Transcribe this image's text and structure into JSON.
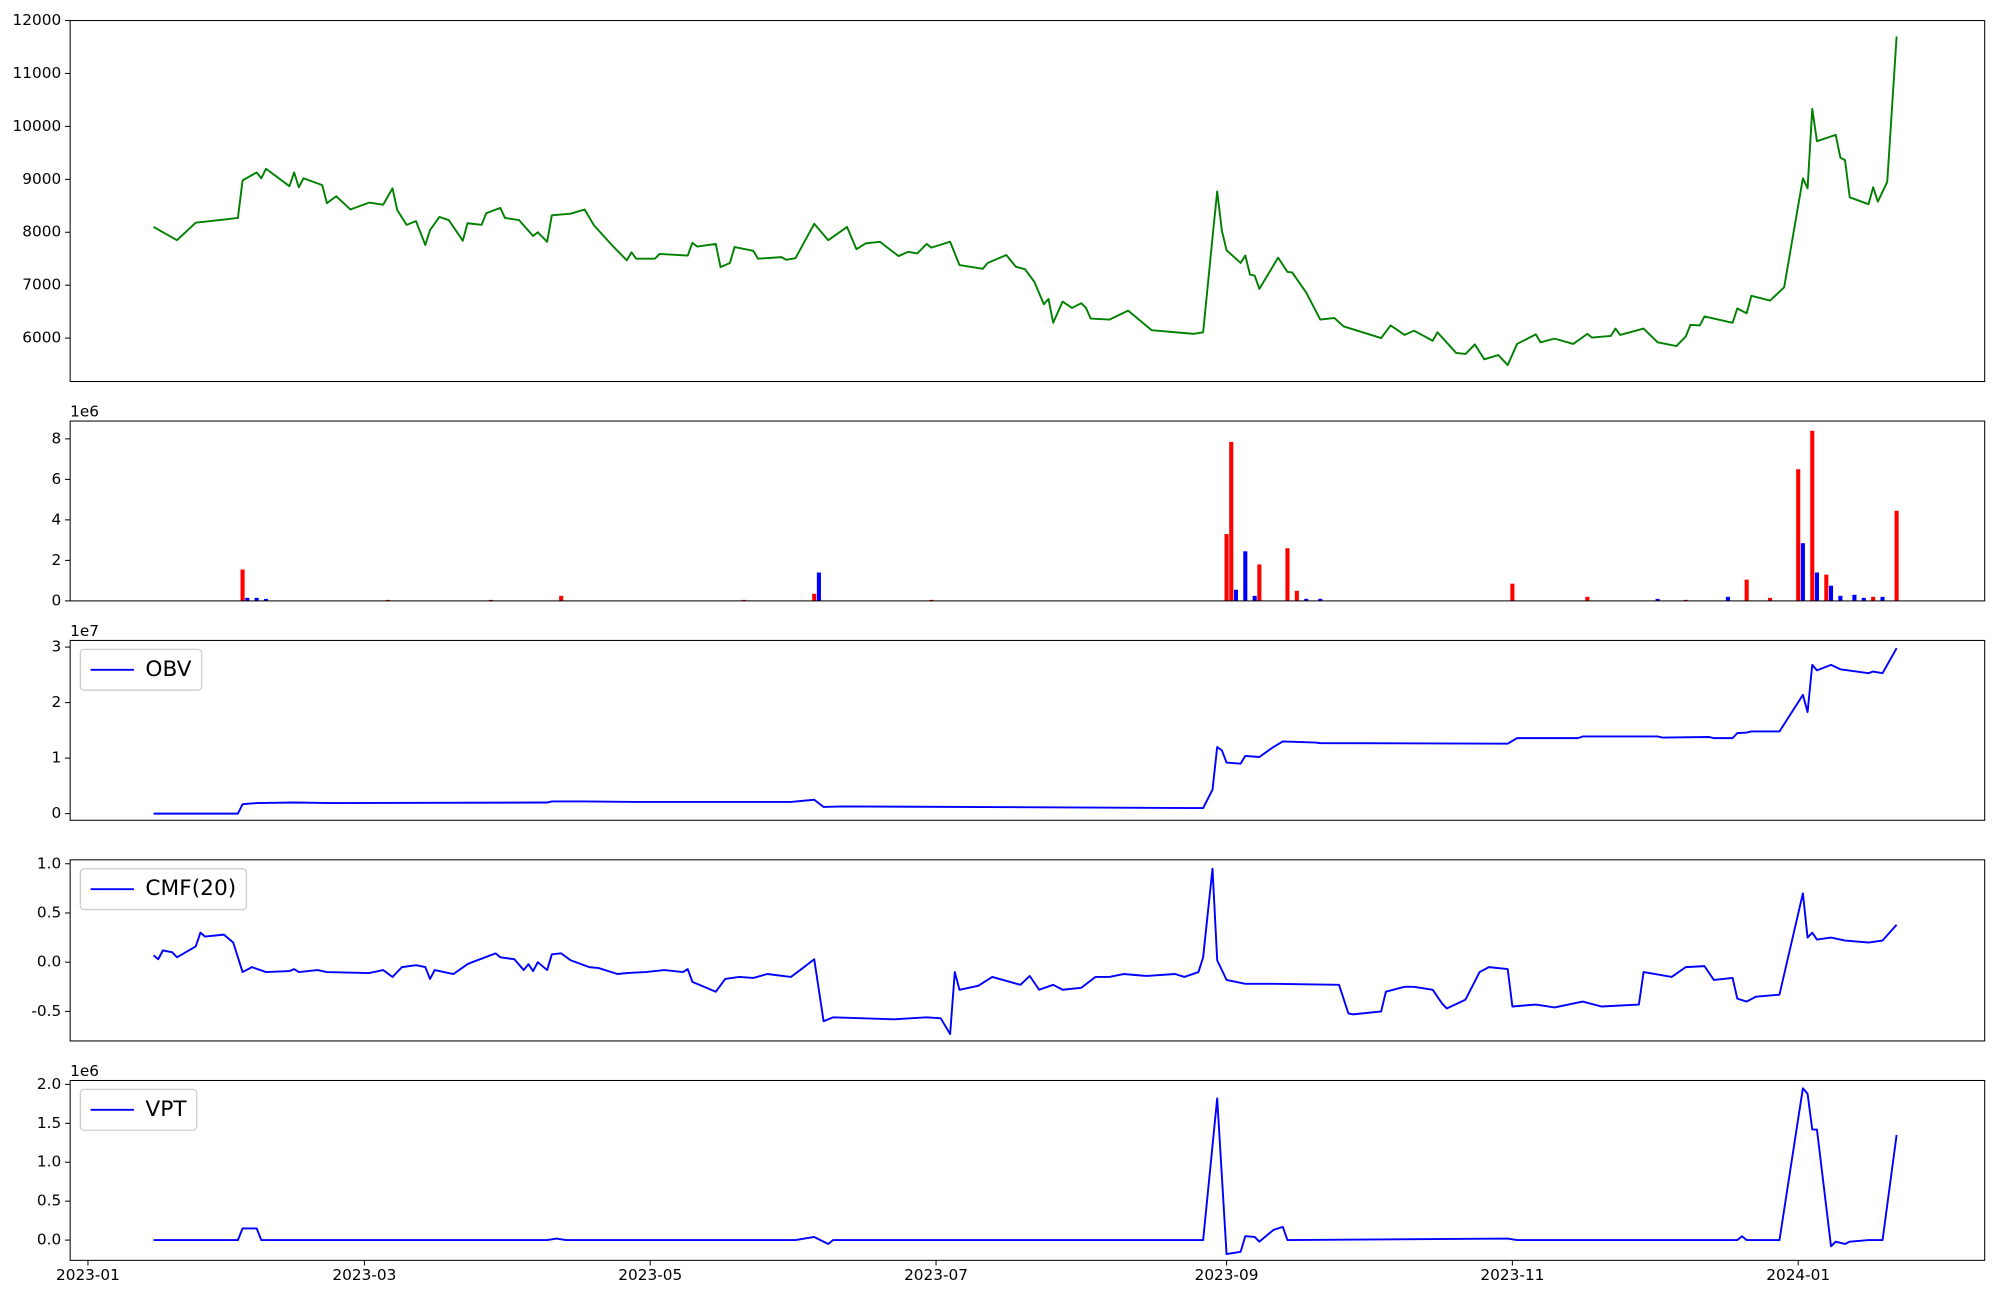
{
  "chart_data": [
    {
      "type": "line",
      "xlim": [
        -3.8,
        404.8
      ],
      "ylim": [
        5180,
        12000
      ],
      "yticks": [
        6000,
        7000,
        8000,
        9000,
        10000,
        11000,
        12000
      ],
      "x": [
        14,
        19,
        23,
        29,
        32,
        33,
        36,
        37,
        38,
        43,
        44,
        45,
        46,
        50,
        51,
        53,
        56,
        60,
        63,
        65,
        66,
        68,
        70,
        72,
        73,
        75,
        77,
        80,
        81,
        84,
        85,
        88,
        89,
        92,
        95,
        96,
        98,
        99,
        103,
        106,
        108,
        112,
        115,
        116,
        117,
        121,
        122,
        128,
        129,
        130,
        134,
        135,
        137,
        138,
        142,
        143,
        148,
        149,
        151,
        155,
        158,
        162,
        164,
        166,
        169,
        173,
        175,
        177,
        179,
        180,
        184,
        186,
        191,
        192,
        196,
        198,
        200,
        202,
        204,
        205,
        206,
        208,
        210,
        212,
        213,
        214,
        218,
        222,
        227,
        236,
        238,
        240,
        241,
        242,
        243,
        246,
        247,
        248,
        249,
        250,
        254,
        256,
        257,
        260,
        263,
        266,
        268,
        276,
        278,
        281,
        283,
        287,
        288,
        292,
        294,
        296,
        298,
        301,
        303,
        305,
        309,
        310,
        313,
        317,
        320,
        321,
        325,
        326,
        327,
        332,
        335,
        339,
        341,
        342,
        344,
        345,
        351,
        352,
        354,
        355,
        359,
        362,
        366,
        367,
        368,
        369,
        373,
        374,
        375,
        376,
        380,
        381,
        382,
        384,
        386
      ],
      "series": [
        {
          "color": "#008000",
          "values": [
            8100,
            7850,
            8180,
            8240,
            8270,
            8980,
            9130,
            9020,
            9200,
            8870,
            9130,
            8850,
            9020,
            8890,
            8550,
            8680,
            8430,
            8560,
            8520,
            8830,
            8420,
            8140,
            8210,
            7760,
            8040,
            8290,
            8230,
            7840,
            8170,
            8140,
            8360,
            8460,
            8270,
            8230,
            7930,
            8000,
            7820,
            8320,
            8350,
            8430,
            8130,
            7740,
            7470,
            7620,
            7500,
            7500,
            7590,
            7560,
            7800,
            7730,
            7780,
            7340,
            7420,
            7720,
            7650,
            7500,
            7530,
            7480,
            7510,
            8160,
            7850,
            8100,
            7680,
            7790,
            7820,
            7550,
            7630,
            7600,
            7780,
            7710,
            7820,
            7380,
            7310,
            7420,
            7570,
            7350,
            7300,
            7060,
            6640,
            6740,
            6290,
            6690,
            6570,
            6660,
            6570,
            6370,
            6350,
            6520,
            6150,
            6080,
            6110,
            7900,
            8770,
            8030,
            7660,
            7420,
            7560,
            7200,
            7180,
            6930,
            7520,
            7250,
            7240,
            6860,
            6350,
            6380,
            6220,
            6000,
            6240,
            6060,
            6140,
            5950,
            6110,
            5720,
            5700,
            5880,
            5600,
            5680,
            5490,
            5890,
            6070,
            5920,
            5990,
            5890,
            6080,
            6010,
            6040,
            6180,
            6060,
            6180,
            5920,
            5850,
            6030,
            6250,
            6240,
            6410,
            6290,
            6560,
            6470,
            6800,
            6710,
            6960,
            9020,
            8830,
            10330,
            9720,
            9840,
            9410,
            9360,
            8660,
            8530,
            8850,
            8580,
            8950,
            11700
          ]
        }
      ]
    },
    {
      "type": "bar",
      "offset_label": "1e6",
      "xlim": [
        -3.8,
        404.8
      ],
      "ylim": [
        0,
        8.88
      ],
      "yticks": [
        0,
        2,
        4,
        6,
        8
      ],
      "series": [
        {
          "color": "#ff0000",
          "x": [
            33,
            64,
            86,
            101,
            140,
            155,
            180,
            243,
            244,
            250,
            256,
            258,
            304,
            320,
            341,
            354,
            359,
            365,
            368,
            371,
            381,
            386
          ],
          "values": [
            1.55,
            0.05,
            0.05,
            0.25,
            0.05,
            0.35,
            0.05,
            3.3,
            7.85,
            1.8,
            2.6,
            0.5,
            0.85,
            0.2,
            0.05,
            1.05,
            0.15,
            6.5,
            8.4,
            1.3,
            0.2,
            4.45
          ]
        },
        {
          "color": "#0000ff",
          "x": [
            34,
            36,
            38,
            156,
            245,
            247,
            249,
            260,
            263,
            335,
            350,
            366,
            369,
            372,
            374,
            377,
            379,
            383
          ],
          "values": [
            0.15,
            0.15,
            0.1,
            1.4,
            0.55,
            2.45,
            0.25,
            0.1,
            0.1,
            0.1,
            0.2,
            2.85,
            1.4,
            0.75,
            0.25,
            0.3,
            0.15,
            0.2
          ]
        }
      ]
    },
    {
      "type": "line",
      "offset_label": "1e7",
      "xlim": [
        -3.8,
        404.8
      ],
      "ylim": [
        -0.12,
        3.12
      ],
      "yticks": [
        0,
        1,
        2,
        3
      ],
      "legend": "upper left",
      "x": [
        14,
        32,
        33,
        36,
        44,
        52,
        98,
        99,
        106,
        117,
        150,
        155,
        157,
        161,
        237,
        238,
        240,
        241,
        242,
        243,
        246,
        247,
        250,
        253,
        255,
        262,
        263,
        303,
        305,
        318,
        319,
        335,
        336,
        346,
        347,
        351,
        352,
        354,
        355,
        361,
        366,
        367,
        368,
        369,
        372,
        374,
        380,
        381,
        383,
        386
      ],
      "series": [
        {
          "name": "OBV",
          "color": "#0000ff",
          "values": [
            0,
            0,
            0.17,
            0.19,
            0.2,
            0.19,
            0.2,
            0.22,
            0.22,
            0.21,
            0.21,
            0.25,
            0.12,
            0.13,
            0.1,
            0.1,
            0.43,
            1.2,
            1.14,
            0.92,
            0.9,
            1.04,
            1.02,
            1.2,
            1.3,
            1.28,
            1.27,
            1.26,
            1.36,
            1.36,
            1.39,
            1.39,
            1.37,
            1.38,
            1.36,
            1.36,
            1.45,
            1.46,
            1.48,
            1.48,
            2.14,
            1.83,
            2.68,
            2.58,
            2.68,
            2.6,
            2.53,
            2.56,
            2.53,
            2.98
          ]
        }
      ]
    },
    {
      "type": "line",
      "xlim": [
        -3.8,
        404.8
      ],
      "ylim": [
        -0.8,
        1.04
      ],
      "yticks": [
        -0.5,
        {
          "value": 0,
          "label": "0.0"
        },
        0.5,
        {
          "value": 1,
          "label": "1.0"
        }
      ],
      "legend": "upper left",
      "x": [
        14,
        15,
        16,
        18,
        19,
        23,
        24,
        25,
        29,
        31,
        33,
        35,
        38,
        43,
        44,
        45,
        49,
        51,
        60,
        63,
        65,
        67,
        70,
        72,
        73,
        74,
        78,
        81,
        82,
        87,
        88,
        91,
        93,
        94,
        95,
        96,
        98,
        99,
        101,
        103,
        107,
        109,
        113,
        115,
        119,
        123,
        127,
        128,
        129,
        134,
        136,
        139,
        142,
        145,
        150,
        152,
        155,
        157,
        159,
        172,
        179,
        182,
        184,
        185,
        186,
        190,
        193,
        199,
        201,
        203,
        206,
        208,
        212,
        215,
        218,
        221,
        226,
        232,
        234,
        237,
        238,
        240,
        241,
        243,
        247,
        253,
        267,
        269,
        270,
        276,
        277,
        281,
        283,
        287,
        289,
        290,
        294,
        297,
        299,
        303,
        304,
        309,
        313,
        319,
        323,
        331,
        332,
        338,
        341,
        345,
        347,
        351,
        352,
        354,
        356,
        361,
        366,
        367,
        368,
        369,
        372,
        375,
        380,
        383,
        386
      ],
      "series": [
        {
          "name": "CMF(20)",
          "color": "#0000ff",
          "values": [
            0.07,
            0.03,
            0.12,
            0.1,
            0.05,
            0.16,
            0.3,
            0.26,
            0.28,
            0.2,
            -0.1,
            -0.05,
            -0.1,
            -0.09,
            -0.07,
            -0.1,
            -0.08,
            -0.1,
            -0.11,
            -0.08,
            -0.15,
            -0.05,
            -0.03,
            -0.05,
            -0.17,
            -0.08,
            -0.12,
            -0.02,
            0,
            0.09,
            0.05,
            0.03,
            -0.08,
            -0.02,
            -0.09,
            0,
            -0.08,
            0.08,
            0.09,
            0.02,
            -0.05,
            -0.06,
            -0.12,
            -0.11,
            -0.1,
            -0.08,
            -0.1,
            -0.07,
            -0.2,
            -0.3,
            -0.17,
            -0.15,
            -0.16,
            -0.12,
            -0.15,
            -0.08,
            0.03,
            -0.6,
            -0.56,
            -0.58,
            -0.56,
            -0.57,
            -0.73,
            -0.1,
            -0.28,
            -0.24,
            -0.15,
            -0.23,
            -0.14,
            -0.28,
            -0.23,
            -0.28,
            -0.26,
            -0.15,
            -0.15,
            -0.12,
            -0.14,
            -0.12,
            -0.15,
            -0.1,
            0.05,
            0.95,
            0.02,
            -0.18,
            -0.22,
            -0.22,
            -0.23,
            -0.52,
            -0.53,
            -0.5,
            -0.3,
            -0.25,
            -0.25,
            -0.28,
            -0.42,
            -0.47,
            -0.38,
            -0.1,
            -0.05,
            -0.07,
            -0.45,
            -0.43,
            -0.46,
            -0.4,
            -0.45,
            -0.43,
            -0.1,
            -0.15,
            -0.05,
            -0.04,
            -0.18,
            -0.16,
            -0.37,
            -0.4,
            -0.35,
            -0.33,
            0.7,
            0.25,
            0.3,
            0.23,
            0.25,
            0.22,
            0.2,
            0.22,
            0.38
          ]
        }
      ]
    },
    {
      "type": "line",
      "offset_label": "1e6",
      "xlim": [
        -3.8,
        404.8
      ],
      "ylim": [
        -0.26,
        2.05
      ],
      "yticks": [
        {
          "value": 0,
          "label": "0.0"
        },
        0.5,
        {
          "value": 1,
          "label": "1.0"
        },
        1.5,
        {
          "value": 2,
          "label": "2.0"
        }
      ],
      "legend": "upper left",
      "xticks": [
        {
          "value": 0,
          "label": "2023-01"
        },
        {
          "value": 59,
          "label": "2023-03"
        },
        {
          "value": 120,
          "label": "2023-05"
        },
        {
          "value": 181,
          "label": "2023-07"
        },
        {
          "value": 243,
          "label": "2023-09"
        },
        {
          "value": 304,
          "label": "2023-11"
        },
        {
          "value": 365,
          "label": "2024-01"
        }
      ],
      "x": [
        14,
        32,
        33,
        36,
        37,
        44,
        98,
        100,
        102,
        151,
        155,
        158,
        159,
        238,
        241,
        243,
        246,
        247,
        249,
        250,
        253,
        255,
        256,
        303,
        305,
        352,
        353,
        354,
        361,
        366,
        367,
        368,
        369,
        372,
        373,
        375,
        376,
        380,
        383,
        386
      ],
      "series": [
        {
          "name": "VPT",
          "color": "#0000ff",
          "values": [
            0,
            0,
            0.15,
            0.15,
            0,
            0,
            0,
            0.02,
            0,
            0,
            0.04,
            -0.05,
            0,
            0,
            1.82,
            -0.18,
            -0.15,
            0.05,
            0.04,
            -0.02,
            0.13,
            0.17,
            0,
            0.02,
            0,
            0,
            0.05,
            0,
            0,
            1.95,
            1.88,
            1.42,
            1.42,
            -0.08,
            -0.02,
            -0.05,
            -0.02,
            0,
            0,
            1.35
          ]
        }
      ]
    }
  ]
}
